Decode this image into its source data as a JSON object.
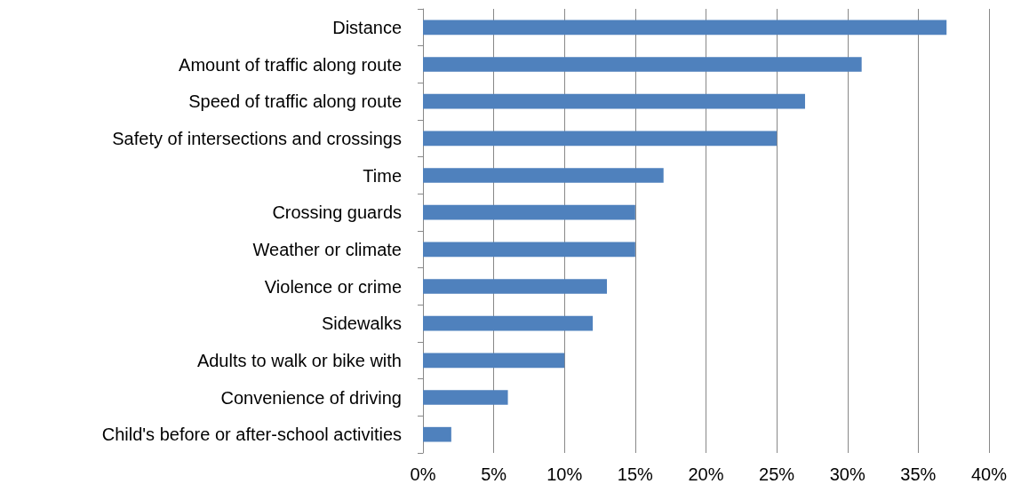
{
  "chart_data": {
    "type": "bar",
    "orientation": "horizontal",
    "categories": [
      "Distance",
      "Amount of traffic along route",
      "Speed of traffic along route",
      "Safety of intersections and crossings",
      "Time",
      "Crossing guards",
      "Weather or climate",
      "Violence or crime",
      "Sidewalks",
      "Adults to walk or bike with",
      "Convenience of driving",
      "Child's before or after-school activities"
    ],
    "values": [
      37,
      31,
      27,
      25,
      17,
      15,
      15,
      13,
      12,
      10,
      6,
      2
    ],
    "color": "#4f81bd",
    "xlim": [
      0,
      40
    ],
    "xticks": [
      {
        "value": 0,
        "label": "0%"
      },
      {
        "value": 5,
        "label": "5%"
      },
      {
        "value": 10,
        "label": "10%"
      },
      {
        "value": 15,
        "label": "15%"
      },
      {
        "value": 20,
        "label": "20%"
      },
      {
        "value": 25,
        "label": "25%"
      },
      {
        "value": 30,
        "label": "30%"
      },
      {
        "value": 35,
        "label": "35%"
      },
      {
        "value": 40,
        "label": "40%"
      }
    ],
    "grid": "x"
  }
}
